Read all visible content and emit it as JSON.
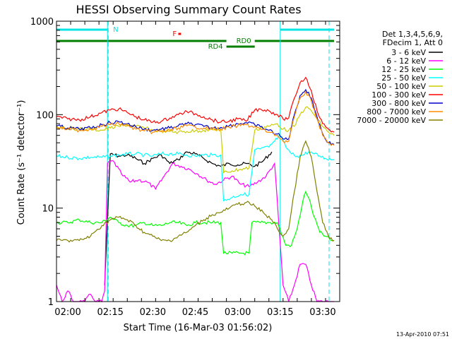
{
  "chart_data": {
    "type": "line",
    "title": "HESSI Observing Summary Count Rates",
    "xlabel": "Start Time (16-Mar-03 01:56:02)",
    "ylabel": "Count Rate (s⁻¹ detector⁻¹)",
    "y_scale": "log",
    "ylim": [
      1,
      1000
    ],
    "x_units": "minutes",
    "xlim": [
      "01:56",
      "03:36"
    ],
    "xtick_labels": [
      "02:00",
      "02:15",
      "02:30",
      "02:45",
      "03:00",
      "03:15",
      "03:30"
    ],
    "ytick_labels": [
      "1",
      "10",
      "100",
      "1000"
    ],
    "grid": false,
    "legend_position": "right",
    "legend_header": [
      "Det 1,3,4,5,6,9,",
      "FDecim 1, Att 0"
    ],
    "footer": "13-Apr-2010 07:51",
    "annotations": [
      {
        "text": "N",
        "color": "#00e5e5"
      },
      {
        "text": "F",
        "color": "#ff0000"
      },
      {
        "text": "RD0",
        "color": "#007f00"
      },
      {
        "text": "RD4",
        "color": "#007f00"
      }
    ],
    "flag_bars": {
      "N": [
        [
          "01:56",
          "02:14"
        ],
        [
          "03:15",
          "03:34"
        ]
      ],
      "F": [
        [
          "02:39",
          "02:40"
        ]
      ],
      "RD0": [
        [
          "01:56",
          "02:56"
        ],
        [
          "03:06",
          "03:34"
        ]
      ],
      "RD4": [
        [
          "02:56",
          "03:06"
        ]
      ]
    },
    "vlines": {
      "solid": [
        "02:14",
        "03:15"
      ],
      "dashed": [
        "02:14",
        "03:32"
      ]
    },
    "series": [
      {
        "name": "3 - 6 keV",
        "color": "#000000",
        "x": [
          "02:13",
          "02:15",
          "02:18",
          "02:21",
          "02:24",
          "02:27",
          "02:30",
          "02:33",
          "02:36",
          "02:39",
          "02:42",
          "02:45",
          "02:48",
          "02:51",
          "02:54",
          "02:57",
          "03:00",
          "03:03",
          "03:06",
          "03:09",
          "03:12"
        ],
        "y": [
          1.5,
          38,
          36,
          37,
          34,
          30,
          34,
          37,
          30,
          33,
          40,
          38,
          34,
          30,
          28,
          30,
          29,
          30,
          28,
          32,
          40
        ]
      },
      {
        "name": "6 - 12 keV",
        "color": "#ff00ff",
        "x": [
          "01:56",
          "01:58",
          "02:00",
          "02:02",
          "02:04",
          "02:06",
          "02:08",
          "02:10",
          "02:12",
          "02:13",
          "02:14",
          "02:16",
          "02:19",
          "02:22",
          "02:25",
          "02:28",
          "02:31",
          "02:34",
          "02:37",
          "02:40",
          "02:43",
          "02:46",
          "02:49",
          "02:52",
          "02:55",
          "02:58",
          "03:01",
          "03:04",
          "03:07",
          "03:10",
          "03:13",
          "03:16",
          "03:18",
          "03:20",
          "03:22",
          "03:24",
          "03:26",
          "03:28",
          "03:30",
          "03:32",
          "03:34"
        ],
        "y": [
          1.5,
          1,
          1.3,
          1,
          1,
          1,
          1.2,
          1,
          1,
          1.3,
          30,
          32,
          23,
          19,
          20,
          19,
          16,
          22,
          30,
          28,
          26,
          23,
          20,
          18,
          20,
          22,
          18,
          17,
          19,
          22,
          30,
          1.5,
          1,
          1.5,
          2.5,
          2.5,
          1.5,
          1,
          1,
          1,
          1
        ]
      },
      {
        "name": "12 - 25 keV",
        "color": "#00ff00",
        "x": [
          "01:56",
          "02:00",
          "02:04",
          "02:08",
          "02:12",
          "02:15",
          "02:18",
          "02:21",
          "02:24",
          "02:27",
          "02:30",
          "02:33",
          "02:36",
          "02:39",
          "02:42",
          "02:45",
          "02:48",
          "02:51",
          "02:54",
          "02:55",
          "02:58",
          "03:01",
          "03:04",
          "03:05",
          "03:08",
          "03:11",
          "03:14",
          "03:17",
          "03:19",
          "03:21",
          "03:23",
          "03:24",
          "03:25",
          "03:27",
          "03:29",
          "03:31",
          "03:33",
          "03:34"
        ],
        "y": [
          7,
          7,
          7.5,
          7,
          7,
          8,
          7,
          6.5,
          6.5,
          7,
          6.5,
          6.5,
          7,
          7,
          6.5,
          7,
          7,
          7,
          7,
          3.3,
          3.3,
          3.3,
          3.3,
          7,
          7,
          7,
          7,
          4,
          4,
          6,
          12,
          15,
          13,
          8,
          5.5,
          5,
          4.5,
          4.5
        ]
      },
      {
        "name": "25 - 50 keV",
        "color": "#00ffff",
        "x": [
          "01:56",
          "02:00",
          "02:04",
          "02:08",
          "02:12",
          "02:15",
          "02:18",
          "02:21",
          "02:24",
          "02:27",
          "02:30",
          "02:33",
          "02:36",
          "02:39",
          "02:42",
          "02:45",
          "02:48",
          "02:51",
          "02:54",
          "02:55",
          "02:58",
          "03:01",
          "03:04",
          "03:06",
          "03:08",
          "03:11",
          "03:13",
          "03:15",
          "03:17",
          "03:19",
          "03:21",
          "03:23",
          "03:25",
          "03:27",
          "03:29",
          "03:31",
          "03:34"
        ],
        "y": [
          36,
          35,
          34,
          35,
          35,
          36,
          37,
          38,
          38,
          37,
          36,
          38,
          38,
          38,
          37,
          36,
          37,
          37,
          37,
          12,
          13,
          14,
          14,
          42,
          43,
          45,
          52,
          60,
          45,
          38,
          36,
          37,
          40,
          38,
          36,
          34,
          33
        ]
      },
      {
        "name": "50 - 100 keV",
        "color": "#cccc00",
        "x": [
          "01:56",
          "02:00",
          "02:04",
          "02:08",
          "02:12",
          "02:15",
          "02:18",
          "02:21",
          "02:24",
          "02:27",
          "02:30",
          "02:33",
          "02:36",
          "02:39",
          "02:42",
          "02:45",
          "02:48",
          "02:51",
          "02:54",
          "02:55",
          "02:58",
          "03:01",
          "03:04",
          "03:06",
          "03:08",
          "03:11",
          "03:14",
          "03:16",
          "03:18",
          "03:20",
          "03:22",
          "03:24",
          "03:26",
          "03:28",
          "03:30",
          "03:32",
          "03:34"
        ],
        "y": [
          75,
          72,
          70,
          70,
          68,
          72,
          75,
          78,
          75,
          72,
          68,
          67,
          66,
          65,
          66,
          67,
          68,
          69,
          70,
          24,
          25,
          26,
          27,
          68,
          72,
          75,
          80,
          70,
          68,
          75,
          100,
          120,
          110,
          90,
          75,
          65,
          60
        ]
      },
      {
        "name": "100 - 300 keV",
        "color": "#ff0000",
        "x": [
          "01:56",
          "02:00",
          "02:04",
          "02:08",
          "02:12",
          "02:15",
          "02:18",
          "02:21",
          "02:24",
          "02:27",
          "02:30",
          "02:33",
          "02:36",
          "02:39",
          "02:42",
          "02:45",
          "02:48",
          "02:51",
          "02:54",
          "02:57",
          "03:00",
          "03:03",
          "03:06",
          "03:08",
          "03:11",
          "03:14",
          "03:16",
          "03:18",
          "03:20",
          "03:22",
          "03:24",
          "03:26",
          "03:28",
          "03:30",
          "03:32",
          "03:34"
        ],
        "y": [
          95,
          90,
          88,
          95,
          105,
          112,
          115,
          105,
          95,
          88,
          83,
          85,
          92,
          100,
          108,
          102,
          95,
          88,
          83,
          85,
          90,
          85,
          112,
          115,
          110,
          100,
          90,
          92,
          150,
          220,
          250,
          180,
          110,
          80,
          70,
          65
        ]
      },
      {
        "name": "300 - 800 keV",
        "color": "#0000cc",
        "x": [
          "01:56",
          "02:00",
          "02:04",
          "02:08",
          "02:12",
          "02:15",
          "02:18",
          "02:21",
          "02:24",
          "02:27",
          "02:30",
          "02:33",
          "02:36",
          "02:39",
          "02:42",
          "02:45",
          "02:48",
          "02:51",
          "02:54",
          "02:57",
          "03:00",
          "03:03",
          "03:06",
          "03:08",
          "03:11",
          "03:14",
          "03:16",
          "03:18",
          "03:20",
          "03:22",
          "03:24",
          "03:26",
          "03:28",
          "03:30",
          "03:32",
          "03:34"
        ],
        "y": [
          76,
          72,
          70,
          72,
          78,
          82,
          84,
          80,
          74,
          70,
          68,
          70,
          72,
          76,
          80,
          78,
          75,
          72,
          73,
          76,
          80,
          82,
          78,
          74,
          68,
          62,
          55,
          55,
          100,
          160,
          185,
          150,
          95,
          62,
          50,
          48
        ]
      },
      {
        "name": "800 - 7000 keV",
        "color": "#ff8c00",
        "x": [
          "01:56",
          "02:00",
          "02:04",
          "02:08",
          "02:12",
          "02:15",
          "02:18",
          "02:21",
          "02:24",
          "02:27",
          "02:30",
          "02:33",
          "02:36",
          "02:39",
          "02:42",
          "02:45",
          "02:48",
          "02:51",
          "02:54",
          "02:57",
          "03:00",
          "03:03",
          "03:06",
          "03:08",
          "03:11",
          "03:14",
          "03:16",
          "03:18",
          "03:20",
          "03:22",
          "03:24",
          "03:26",
          "03:28",
          "03:30",
          "03:32",
          "03:34"
        ],
        "y": [
          73,
          70,
          68,
          70,
          75,
          78,
          80,
          76,
          70,
          67,
          65,
          66,
          68,
          72,
          76,
          74,
          72,
          70,
          70,
          73,
          76,
          78,
          74,
          70,
          65,
          60,
          52,
          52,
          95,
          150,
          175,
          140,
          90,
          60,
          50,
          47
        ]
      },
      {
        "name": "7000 - 20000 keV",
        "color": "#808000",
        "x": [
          "01:56",
          "02:00",
          "02:04",
          "02:08",
          "02:12",
          "02:15",
          "02:18",
          "02:21",
          "02:24",
          "02:27",
          "02:30",
          "02:33",
          "02:36",
          "02:39",
          "02:42",
          "02:45",
          "02:48",
          "02:51",
          "02:54",
          "02:57",
          "03:00",
          "03:03",
          "03:06",
          "03:09",
          "03:12",
          "03:14",
          "03:16",
          "03:18",
          "03:20",
          "03:22",
          "03:24",
          "03:26",
          "03:28",
          "03:30",
          "03:32",
          "03:34"
        ],
        "y": [
          4.5,
          4.5,
          4.5,
          5,
          6.5,
          7.5,
          8,
          7.5,
          6.5,
          5.5,
          5,
          4.5,
          4.5,
          5,
          5.5,
          6.5,
          7.5,
          8.5,
          9,
          10,
          11,
          11.5,
          10.5,
          9,
          7.5,
          6,
          5,
          6,
          15,
          35,
          52,
          35,
          15,
          7,
          5,
          4.5
        ]
      }
    ]
  }
}
